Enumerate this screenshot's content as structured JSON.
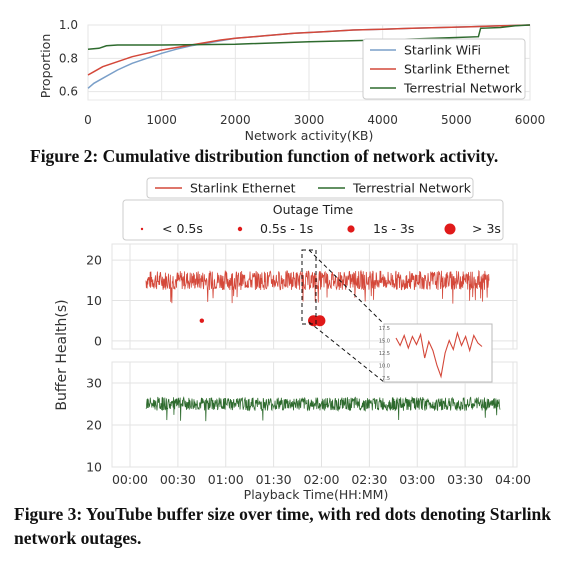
{
  "figure2": {
    "caption": "Figure 2: Cumulative distribution function of network activity.",
    "chart_data": {
      "type": "line",
      "xlabel": "Network activity(KB)",
      "ylabel": "Proportion",
      "xlim": [
        0,
        6000
      ],
      "ylim": [
        0.55,
        1.0
      ],
      "x_ticks": [
        "0",
        "1000",
        "2000",
        "3000",
        "4000",
        "5000",
        "6000"
      ],
      "y_ticks": [
        "0.6",
        "0.8",
        "1.0"
      ],
      "grid": true,
      "legend_position": "bottom-right",
      "series": [
        {
          "name": "Starlink WiFi",
          "color": "#7a9fc9",
          "x": [
            0,
            80,
            200,
            400,
            600,
            800,
            1000,
            1200,
            1400,
            1600,
            1800,
            2000,
            2400,
            2800,
            3200,
            3600,
            4000,
            4400,
            4800,
            5200,
            5600,
            6000
          ],
          "y": [
            0.62,
            0.65,
            0.68,
            0.73,
            0.77,
            0.8,
            0.83,
            0.855,
            0.875,
            0.89,
            0.905,
            0.92,
            0.935,
            0.95,
            0.96,
            0.97,
            0.975,
            0.98,
            0.985,
            0.99,
            0.995,
            1.0
          ]
        },
        {
          "name": "Starlink Ethernet",
          "color": "#d4483a",
          "x": [
            0,
            80,
            200,
            400,
            600,
            800,
            1000,
            1200,
            1400,
            1600,
            1800,
            2000,
            2400,
            2800,
            3200,
            3600,
            4000,
            4400,
            4800,
            5200,
            5600,
            6000
          ],
          "y": [
            0.7,
            0.72,
            0.75,
            0.78,
            0.81,
            0.83,
            0.85,
            0.865,
            0.88,
            0.895,
            0.91,
            0.92,
            0.935,
            0.95,
            0.96,
            0.97,
            0.975,
            0.98,
            0.985,
            0.99,
            0.995,
            1.0
          ]
        },
        {
          "name": "Terrestrial Network",
          "color": "#2e6b2e",
          "x": [
            0,
            150,
            250,
            400,
            1000,
            2000,
            3000,
            4000,
            5000,
            5300,
            5330,
            5600,
            5800,
            6000
          ],
          "y": [
            0.855,
            0.86,
            0.875,
            0.88,
            0.88,
            0.885,
            0.9,
            0.91,
            0.925,
            0.93,
            0.98,
            0.985,
            0.995,
            1.0
          ]
        }
      ]
    }
  },
  "figure3": {
    "caption": "Figure 3: YouTube buffer size over time, with red dots denoting Starlink network outages.",
    "chart_data": {
      "type": "line",
      "xlabel": "Playback Time(HH:MM)",
      "ylabel": "Buffer Health(s)",
      "x_ticks": [
        "00:00",
        "00:30",
        "01:00",
        "01:30",
        "02:00",
        "02:30",
        "03:00",
        "03:30",
        "04:00"
      ],
      "xlim_minutes": [
        0,
        240
      ],
      "grid": true,
      "legend": [
        "Starlink Ethernet",
        "Terrestrial Network"
      ],
      "legend_position": "top",
      "outage_legend": {
        "title": "Outage Time",
        "entries": [
          "< 0.5s",
          "0.5s - 1s",
          "1s - 3s",
          "> 3s"
        ]
      },
      "panels": [
        {
          "series": "Starlink Ethernet",
          "color": "#d4483a",
          "ylim": [
            -2,
            24
          ],
          "y_ticks": [
            "0",
            "10",
            "20"
          ],
          "mean": 15,
          "spread": 2.4,
          "x_range_minutes": [
            10,
            225
          ],
          "outages": [
            {
              "minute": 45,
              "value": 5,
              "size": "0.5s - 1s"
            },
            {
              "minute": 115,
              "value": 5,
              "size": "> 3s"
            },
            {
              "minute": 119,
              "value": 5,
              "size": "> 3s"
            }
          ]
        },
        {
          "series": "Terrestrial Network",
          "color": "#2e6b2e",
          "ylim": [
            10,
            35
          ],
          "y_ticks": [
            "10",
            "20",
            "30"
          ],
          "mean": 25,
          "spread": 1.6,
          "x_range_minutes": [
            10,
            232
          ]
        }
      ],
      "inset": {
        "y_ticks": [
          "17.5",
          "15.0",
          "12.5",
          "10.0",
          "7.5"
        ],
        "values": [
          15.5,
          14.0,
          16.0,
          13.5,
          15.8,
          14.2,
          16.2,
          11.5,
          14.8,
          13.0,
          10.0,
          7.8,
          12.5,
          15.0,
          13.2,
          16.5,
          14.0,
          15.8,
          13.0,
          16.0,
          14.5,
          13.8
        ]
      }
    }
  }
}
